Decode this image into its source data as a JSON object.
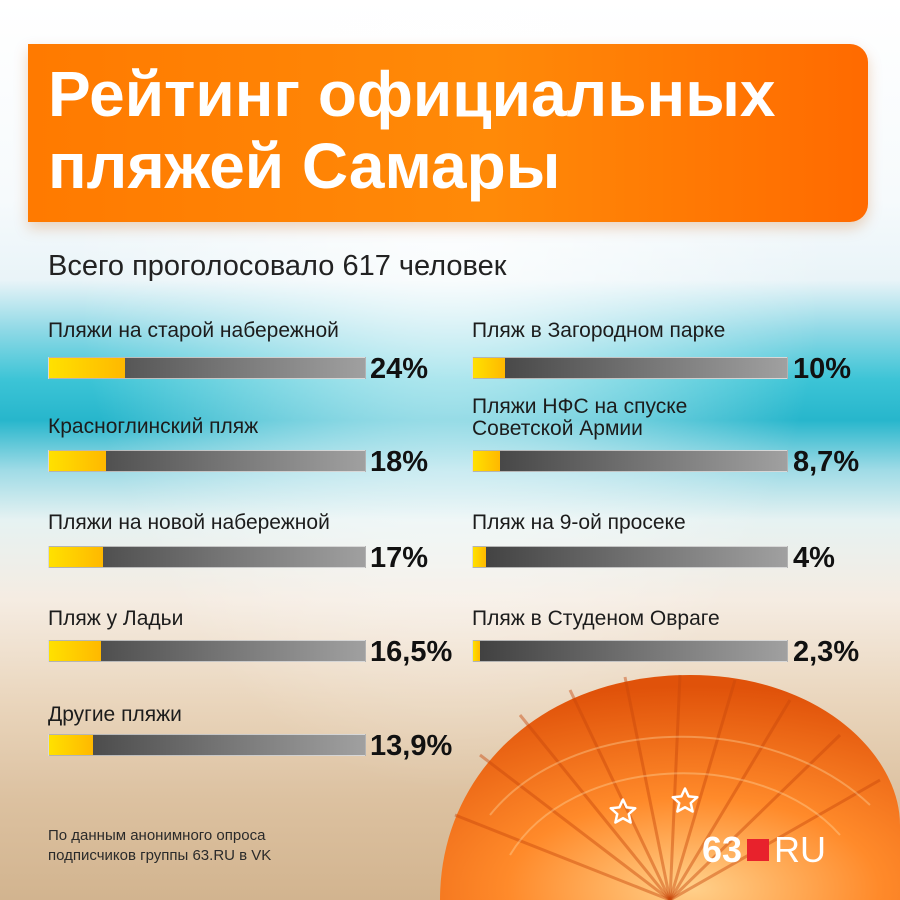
{
  "title": {
    "line1": "Рейтинг официальных",
    "line2": "пляжей Самары"
  },
  "subtitle": "Всего проголосовало 617 человек",
  "colors": {
    "title_bg": "#ff7a00",
    "bar_fill": "#ffd000",
    "bar_track": "#6a6a6a",
    "logo_square": "#e8222c"
  },
  "chart_data": {
    "type": "bar",
    "title": "Рейтинг официальных пляжей Самары",
    "subtitle": "Всего проголосовало 617 человек",
    "unit": "%",
    "ylim": [
      0,
      100
    ],
    "categories": [
      "Пляжи на старой набережной",
      "Красноглинский пляж",
      "Пляжи на новой набережной",
      "Пляж у Ладьи",
      "Другие пляжи",
      "Пляж в Загородном парке",
      "Пляжи НФС на спуске Советской Армии",
      "Пляж на 9-ой просеке",
      "Пляж в Студеном Овраге"
    ],
    "values": [
      24,
      18,
      17,
      16.5,
      13.9,
      10,
      8.7,
      4,
      2.3
    ],
    "items": [
      {
        "label": "Пляжи на старой набережной",
        "label2": "",
        "value": 24,
        "pct": "24%"
      },
      {
        "label": "Красноглинский пляж",
        "label2": "",
        "value": 18,
        "pct": "18%"
      },
      {
        "label": "Пляжи на новой набережной",
        "label2": "",
        "value": 17,
        "pct": "17%"
      },
      {
        "label": "Пляж у Ладьи",
        "label2": "",
        "value": 16.5,
        "pct": "16,5%"
      },
      {
        "label": "Другие пляжи",
        "label2": "",
        "value": 13.9,
        "pct": "13,9%"
      },
      {
        "label": "Пляж в Загородном парке",
        "label2": "",
        "value": 10,
        "pct": "10%"
      },
      {
        "label": "Пляжи НФС на спуске",
        "label2": "Советской Армии",
        "value": 8.7,
        "pct": "8,7%"
      },
      {
        "label": "Пляж на 9-ой просеке",
        "label2": "",
        "value": 4,
        "pct": "4%"
      },
      {
        "label": "Пляж в Студеном Овраге",
        "label2": "",
        "value": 2.3,
        "pct": "2,3%"
      }
    ]
  },
  "footnote": {
    "line1": "По данным анонимного опроса",
    "line2": "подписчиков группы 63.RU в VK"
  },
  "logo": {
    "num": "63",
    "suffix": "RU"
  }
}
